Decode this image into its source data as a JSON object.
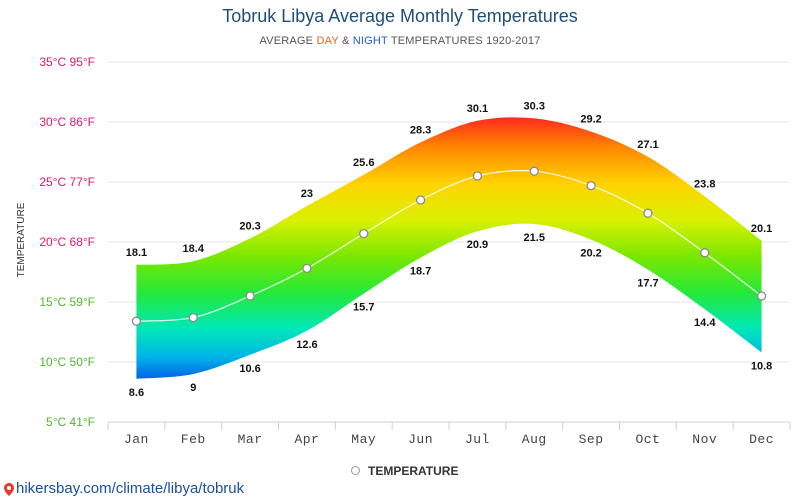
{
  "chart_data": {
    "type": "area",
    "title": "Tobruk Libya Average Monthly Temperatures",
    "subtitle_prefix": "AVERAGE ",
    "subtitle_day": "DAY",
    "subtitle_amp": " & ",
    "subtitle_night": "NIGHT",
    "subtitle_suffix": " TEMPERATURES 1920-2017",
    "ylabel": "TEMPERATURE",
    "ylim": [
      5,
      35
    ],
    "y_ticks": [
      {
        "value": 35,
        "label": "35°C 95°F",
        "color": "#e0186c"
      },
      {
        "value": 30,
        "label": "30°C 86°F",
        "color": "#e0186c"
      },
      {
        "value": 25,
        "label": "25°C 77°F",
        "color": "#e0186c"
      },
      {
        "value": 20,
        "label": "20°C 68°F",
        "color": "#e0186c"
      },
      {
        "value": 15,
        "label": "15°C 59°F",
        "color": "#4db82b"
      },
      {
        "value": 10,
        "label": "10°C 50°F",
        "color": "#4db82b"
      },
      {
        "value": 5,
        "label": "5°C 41°F",
        "color": "#4db82b"
      }
    ],
    "categories": [
      "Jan",
      "Feb",
      "Mar",
      "Apr",
      "May",
      "Jun",
      "Jul",
      "Aug",
      "Sep",
      "Oct",
      "Nov",
      "Dec"
    ],
    "series": [
      {
        "name": "Day",
        "values": [
          18.1,
          18.4,
          20.3,
          23,
          25.6,
          28.3,
          30.1,
          30.3,
          29.2,
          27.1,
          23.8,
          20.1
        ]
      },
      {
        "name": "Night",
        "values": [
          8.6,
          9,
          10.6,
          12.6,
          15.7,
          18.7,
          20.9,
          21.5,
          20.2,
          17.7,
          14.4,
          10.8
        ]
      },
      {
        "name": "Temperature",
        "values": [
          13.4,
          13.7,
          15.5,
          17.8,
          20.7,
          23.5,
          25.5,
          25.9,
          24.7,
          22.4,
          19.1,
          15.5
        ]
      }
    ],
    "legend": "TEMPERATURE"
  },
  "source": "hikersbay.com/climate/libya/tobruk",
  "colors": {
    "day": "#e8641b",
    "night": "#1f5fbf",
    "title": "#1f4e79"
  }
}
